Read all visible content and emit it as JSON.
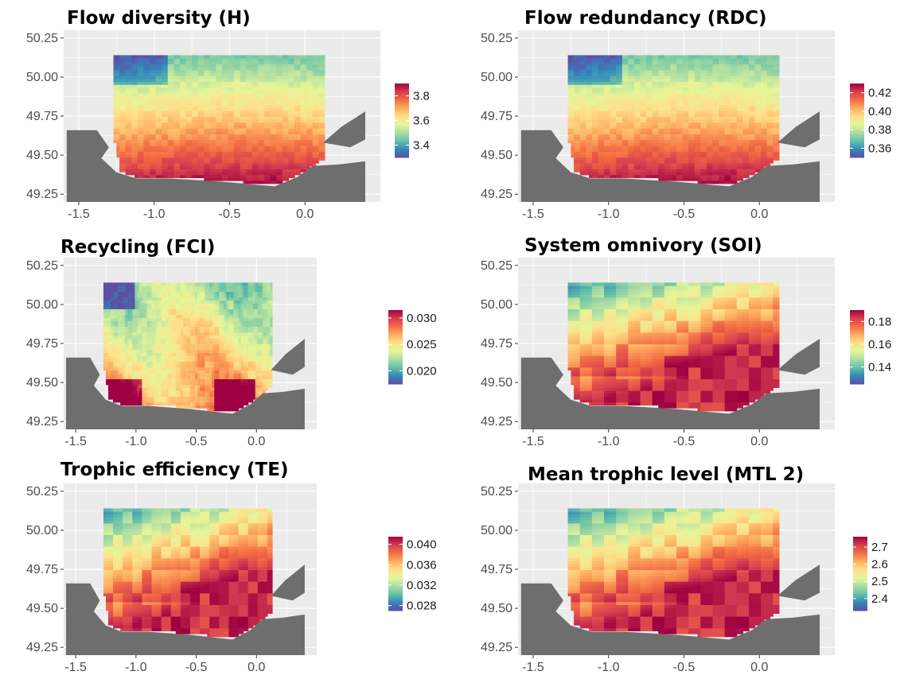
{
  "colors": {
    "panel_bg": "#ebebeb",
    "gridline": "#ffffff",
    "land": "#6e6e6e",
    "palette": [
      "#5e4fa2",
      "#3288bd",
      "#66c2a5",
      "#abdda4",
      "#e6f598",
      "#fee08b",
      "#fdae61",
      "#f46d43",
      "#d53e4f",
      "#9e0142"
    ]
  },
  "chart_data": [
    {
      "type": "heatmap",
      "id": "flow-diversity",
      "title": "Flow diversity (H)",
      "xlabel": "",
      "ylabel": "",
      "x_ticks": [
        "-1.5",
        "-1.0",
        "-0.5",
        "0.0"
      ],
      "y_ticks": [
        "49.25",
        "49.50",
        "49.75",
        "50.00",
        "50.25"
      ],
      "xlim": [
        -1.6,
        0.5
      ],
      "ylim": [
        49.2,
        50.3
      ],
      "legend": {
        "placement": "right",
        "labels": [
          "3.8",
          "3.6",
          "3.4"
        ],
        "values": [
          3.8,
          3.6,
          3.4
        ],
        "range": [
          3.3,
          3.9
        ]
      },
      "pattern": "gradient",
      "blocky": false,
      "value_range": [
        3.3,
        3.9
      ]
    },
    {
      "type": "heatmap",
      "id": "flow-redundancy",
      "title": "Flow redundancy (RDC)",
      "xlabel": "",
      "ylabel": "",
      "x_ticks": [
        "-1.5",
        "-1.0",
        "-0.5",
        "0.0"
      ],
      "y_ticks": [
        "49.25",
        "49.50",
        "49.75",
        "50.00",
        "50.25"
      ],
      "xlim": [
        -1.6,
        0.5
      ],
      "ylim": [
        49.2,
        50.3
      ],
      "legend": {
        "placement": "right",
        "labels": [
          "0.42",
          "0.40",
          "0.38",
          "0.36"
        ],
        "values": [
          0.42,
          0.4,
          0.38,
          0.36
        ],
        "range": [
          0.35,
          0.43
        ]
      },
      "pattern": "gradient",
      "blocky": false,
      "value_range": [
        0.35,
        0.43
      ]
    },
    {
      "type": "heatmap",
      "id": "recycling",
      "title": "Recycling (FCI)",
      "xlabel": "",
      "ylabel": "",
      "x_ticks": [
        "-1.5",
        "-1.0",
        "-0.5",
        "0.0"
      ],
      "y_ticks": [
        "49.25",
        "49.50",
        "49.75",
        "50.00",
        "50.25"
      ],
      "xlim": [
        -1.6,
        0.5
      ],
      "ylim": [
        49.2,
        50.3
      ],
      "legend": {
        "placement": "right",
        "labels": [
          "0.030",
          "0.025",
          "0.020"
        ],
        "values": [
          0.03,
          0.025,
          0.02
        ],
        "range": [
          0.0175,
          0.0315
        ]
      },
      "pattern": "patchy",
      "blocky": false,
      "value_range": [
        0.0175,
        0.0315
      ]
    },
    {
      "type": "heatmap",
      "id": "system-omnivory",
      "title": "System omnivory (SOI)",
      "xlabel": "",
      "ylabel": "",
      "x_ticks": [
        "-1.5",
        "-1.0",
        "-0.5",
        "0.0"
      ],
      "y_ticks": [
        "49.25",
        "49.50",
        "49.75",
        "50.00",
        "50.25"
      ],
      "xlim": [
        -1.6,
        0.5
      ],
      "ylim": [
        49.2,
        50.3
      ],
      "legend": {
        "placement": "right",
        "labels": [
          "0.18",
          "0.16",
          "0.14"
        ],
        "values": [
          0.18,
          0.16,
          0.14
        ],
        "range": [
          0.125,
          0.19
        ]
      },
      "pattern": "diagonal",
      "blocky": true,
      "value_range": [
        0.125,
        0.19
      ]
    },
    {
      "type": "heatmap",
      "id": "trophic-efficiency",
      "title": "Trophic efficiency (TE)",
      "xlabel": "",
      "ylabel": "",
      "x_ticks": [
        "-1.5",
        "-1.0",
        "-0.5",
        "0.0"
      ],
      "y_ticks": [
        "49.25",
        "49.50",
        "49.75",
        "50.00",
        "50.25"
      ],
      "xlim": [
        -1.6,
        0.5
      ],
      "ylim": [
        49.2,
        50.3
      ],
      "legend": {
        "placement": "right",
        "labels": [
          "0.040",
          "0.036",
          "0.032",
          "0.028"
        ],
        "values": [
          0.04,
          0.036,
          0.032,
          0.028
        ],
        "range": [
          0.027,
          0.0415
        ]
      },
      "pattern": "diagonal",
      "blocky": true,
      "value_range": [
        0.027,
        0.0415
      ]
    },
    {
      "type": "heatmap",
      "id": "mean-trophic-level",
      "title": "Mean trophic level (MTL 2)",
      "xlabel": "",
      "ylabel": "",
      "x_ticks": [
        "-1.5",
        "-1.0",
        "-0.5",
        "0.0"
      ],
      "y_ticks": [
        "49.25",
        "49.50",
        "49.75",
        "50.00",
        "50.25"
      ],
      "xlim": [
        -1.6,
        0.5
      ],
      "ylim": [
        49.2,
        50.3
      ],
      "legend": {
        "placement": "right",
        "labels": [
          "2.7",
          "2.6",
          "2.5",
          "2.4"
        ],
        "values": [
          2.7,
          2.6,
          2.5,
          2.4
        ],
        "range": [
          2.33,
          2.76
        ]
      },
      "pattern": "diagonal",
      "blocky": true,
      "value_range": [
        2.33,
        2.76
      ]
    }
  ]
}
